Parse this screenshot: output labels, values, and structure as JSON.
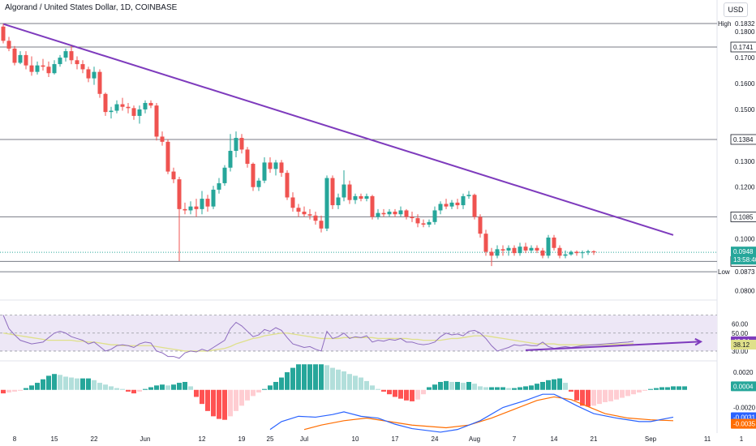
{
  "header": {
    "symbol_title": "Algorand / United States Dollar, 1D, COINBASE",
    "currency_button": "USD"
  },
  "colors": {
    "up": "#26a69a",
    "down": "#ef5350",
    "trendline": "#7e3bbd",
    "level": "#787b86",
    "rsi_line": "#8e6cbf",
    "rsi_ma": "#dfe08a",
    "rsi_band": "#ede7f6",
    "macd_line": "#2962ff",
    "signal_line": "#ff6d00",
    "hist_up_strong": "#26a69a",
    "hist_up_weak": "#b2dfdb",
    "hist_down_strong": "#ff5252",
    "hist_down_weak": "#ffcdd2",
    "price_tag": "#26a69a"
  },
  "chart_data": [
    {
      "type": "candlestick",
      "title": "Algorand / United States Dollar, 1D, COINBASE",
      "x_ticks": [
        "8",
        "15",
        "22",
        "Jun",
        "12",
        "19",
        "25",
        "Jul",
        "10",
        "17",
        "24",
        "Aug",
        "7",
        "14",
        "21",
        "Sep",
        "11",
        "1"
      ],
      "y_ticks": [
        "0.1800",
        "0.1700",
        "0.1600",
        "0.1500",
        "0.1300",
        "0.1200",
        "0.1000",
        "0.0800"
      ],
      "ylim": [
        0.077,
        0.186
      ],
      "candles_ohlc": [
        [
          0.182,
          0.183,
          0.1755,
          0.1765
        ],
        [
          0.1765,
          0.178,
          0.1725,
          0.1735
        ],
        [
          0.1735,
          0.1745,
          0.167,
          0.168
        ],
        [
          0.168,
          0.1725,
          0.1675,
          0.171
        ],
        [
          0.171,
          0.1725,
          0.1655,
          0.167
        ],
        [
          0.167,
          0.1705,
          0.163,
          0.1645
        ],
        [
          0.1645,
          0.1685,
          0.1635,
          0.167
        ],
        [
          0.167,
          0.1695,
          0.165,
          0.1665
        ],
        [
          0.1665,
          0.1685,
          0.1625,
          0.164
        ],
        [
          0.164,
          0.169,
          0.1635,
          0.1675
        ],
        [
          0.1675,
          0.171,
          0.1665,
          0.17
        ],
        [
          0.17,
          0.1735,
          0.1685,
          0.1725
        ],
        [
          0.1725,
          0.1745,
          0.1675,
          0.169
        ],
        [
          0.169,
          0.1705,
          0.1655,
          0.1675
        ],
        [
          0.1675,
          0.169,
          0.164,
          0.1655
        ],
        [
          0.1655,
          0.1665,
          0.1605,
          0.162
        ],
        [
          0.162,
          0.1665,
          0.1595,
          0.1645
        ],
        [
          0.1645,
          0.1655,
          0.1545,
          0.156
        ],
        [
          0.156,
          0.1565,
          0.1475,
          0.149
        ],
        [
          0.149,
          0.151,
          0.1465,
          0.1495
        ],
        [
          0.1495,
          0.1535,
          0.1485,
          0.152
        ],
        [
          0.152,
          0.1545,
          0.1495,
          0.151
        ],
        [
          0.151,
          0.1525,
          0.1485,
          0.1505
        ],
        [
          0.1505,
          0.1515,
          0.146,
          0.1475
        ],
        [
          0.1475,
          0.1515,
          0.1445,
          0.15
        ],
        [
          0.15,
          0.1535,
          0.1485,
          0.1525
        ],
        [
          0.1525,
          0.1535,
          0.1505,
          0.1515
        ],
        [
          0.1515,
          0.1525,
          0.138,
          0.1395
        ],
        [
          0.1395,
          0.1415,
          0.136,
          0.1375
        ],
        [
          0.1375,
          0.1385,
          0.125,
          0.126
        ],
        [
          0.126,
          0.1275,
          0.1215,
          0.123
        ],
        [
          0.123,
          0.124,
          0.0914,
          0.1115
        ],
        [
          0.1115,
          0.114,
          0.1095,
          0.111
        ],
        [
          0.111,
          0.1145,
          0.1095,
          0.1125
        ],
        [
          0.1125,
          0.1155,
          0.1085,
          0.1115
        ],
        [
          0.1115,
          0.1185,
          0.1095,
          0.1155
        ],
        [
          0.1155,
          0.117,
          0.1105,
          0.1125
        ],
        [
          0.1125,
          0.1205,
          0.1115,
          0.119
        ],
        [
          0.119,
          0.1235,
          0.1175,
          0.1215
        ],
        [
          0.1215,
          0.1285,
          0.1205,
          0.1275
        ],
        [
          0.1275,
          0.1405,
          0.126,
          0.134
        ],
        [
          0.134,
          0.1415,
          0.1315,
          0.139
        ],
        [
          0.139,
          0.1405,
          0.133,
          0.1345
        ],
        [
          0.1345,
          0.1355,
          0.1275,
          0.129
        ],
        [
          0.129,
          0.1295,
          0.1185,
          0.12
        ],
        [
          0.12,
          0.1235,
          0.1185,
          0.1225
        ],
        [
          0.1225,
          0.1315,
          0.1215,
          0.1295
        ],
        [
          0.1295,
          0.1315,
          0.1255,
          0.127
        ],
        [
          0.127,
          0.1305,
          0.1245,
          0.1295
        ],
        [
          0.1295,
          0.1305,
          0.124,
          0.1255
        ],
        [
          0.1255,
          0.1265,
          0.115,
          0.116
        ],
        [
          0.116,
          0.118,
          0.1105,
          0.112
        ],
        [
          0.112,
          0.1135,
          0.1085,
          0.1105
        ],
        [
          0.1105,
          0.1125,
          0.1085,
          0.1095
        ],
        [
          0.1095,
          0.1115,
          0.1075,
          0.109
        ],
        [
          0.109,
          0.1105,
          0.1055,
          0.107
        ],
        [
          0.107,
          0.109,
          0.1025,
          0.104
        ],
        [
          0.104,
          0.1245,
          0.103,
          0.1235
        ],
        [
          0.1235,
          0.1245,
          0.1115,
          0.113
        ],
        [
          0.113,
          0.1175,
          0.1115,
          0.116
        ],
        [
          0.116,
          0.1265,
          0.1145,
          0.121
        ],
        [
          0.121,
          0.1225,
          0.1135,
          0.115
        ],
        [
          0.115,
          0.1175,
          0.1135,
          0.1165
        ],
        [
          0.1165,
          0.1175,
          0.1145,
          0.1155
        ],
        [
          0.1155,
          0.1175,
          0.1145,
          0.1165
        ],
        [
          0.1165,
          0.117,
          0.1075,
          0.1085
        ],
        [
          0.1085,
          0.1115,
          0.1075,
          0.11
        ],
        [
          0.11,
          0.1115,
          0.1085,
          0.1095
        ],
        [
          0.1095,
          0.1115,
          0.1085,
          0.1105
        ],
        [
          0.1105,
          0.1115,
          0.1085,
          0.1095
        ],
        [
          0.1095,
          0.1125,
          0.1085,
          0.111
        ],
        [
          0.111,
          0.1115,
          0.1075,
          0.1085
        ],
        [
          0.1085,
          0.1105,
          0.1065,
          0.108
        ],
        [
          0.108,
          0.1095,
          0.1045,
          0.106
        ],
        [
          0.106,
          0.1075,
          0.1045,
          0.1055
        ],
        [
          0.1055,
          0.1075,
          0.1045,
          0.1065
        ],
        [
          0.1065,
          0.1125,
          0.1055,
          0.111
        ],
        [
          0.111,
          0.1145,
          0.1095,
          0.1135
        ],
        [
          0.1135,
          0.1155,
          0.1115,
          0.1125
        ],
        [
          0.1125,
          0.115,
          0.1115,
          0.114
        ],
        [
          0.114,
          0.1155,
          0.1115,
          0.113
        ],
        [
          0.113,
          0.1175,
          0.1115,
          0.1165
        ],
        [
          0.1165,
          0.1185,
          0.1155,
          0.117
        ],
        [
          0.117,
          0.1175,
          0.1075,
          0.1085
        ],
        [
          0.1085,
          0.1095,
          0.1005,
          0.102
        ],
        [
          0.102,
          0.1035,
          0.0935,
          0.095
        ],
        [
          0.095,
          0.0965,
          0.0895,
          0.0935
        ],
        [
          0.0935,
          0.0975,
          0.0925,
          0.096
        ],
        [
          0.096,
          0.0975,
          0.0935,
          0.0955
        ],
        [
          0.0955,
          0.0975,
          0.0935,
          0.0965
        ],
        [
          0.0965,
          0.0975,
          0.0935,
          0.0945
        ],
        [
          0.0945,
          0.0985,
          0.0935,
          0.097
        ],
        [
          0.097,
          0.0985,
          0.0945,
          0.0955
        ],
        [
          0.0955,
          0.0975,
          0.0945,
          0.0965
        ],
        [
          0.0965,
          0.0975,
          0.0945,
          0.0955
        ],
        [
          0.0955,
          0.0965,
          0.0925,
          0.0935
        ],
        [
          0.0935,
          0.1015,
          0.0925,
          0.1005
        ],
        [
          0.1005,
          0.1015,
          0.0955,
          0.0965
        ],
        [
          0.0965,
          0.0975,
          0.0925,
          0.0935
        ],
        [
          0.0935,
          0.0955,
          0.0925,
          0.094
        ],
        [
          0.094,
          0.0955,
          0.0935,
          0.095
        ],
        [
          0.095,
          0.0955,
          0.0935,
          0.0945
        ],
        [
          0.0945,
          0.0955,
          0.0925,
          0.0948
        ],
        [
          0.0948,
          0.0958,
          0.0938,
          0.0952
        ],
        [
          0.0952,
          0.0956,
          0.0938,
          0.0948
        ]
      ],
      "horizontal_levels": [
        {
          "value": 0.1832,
          "tag": "0.1832",
          "side_label": "High"
        },
        {
          "value": 0.1741,
          "tag": "0.1741"
        },
        {
          "value": 0.1384,
          "tag": "0.1384"
        },
        {
          "value": 0.1085,
          "tag": "0.1085"
        },
        {
          "value": 0.0913,
          "tag": "0.0913"
        },
        {
          "value": 0.0873,
          "tag": "0.0873",
          "side_label": "Low"
        }
      ],
      "current_price": {
        "value": 0.0948,
        "tag": "0.0948",
        "countdown": "13:58:40"
      },
      "trendline": {
        "from": [
          0,
          0.183
        ],
        "to": [
          118,
          0.1015
        ]
      }
    },
    {
      "type": "line",
      "name": "RSI",
      "y_ticks": [
        "60.00",
        "50.00",
        "30.00"
      ],
      "ylim": [
        20,
        85
      ],
      "band": [
        30,
        70
      ],
      "rsi": [
        70,
        55,
        48,
        42,
        40,
        38,
        39,
        40,
        45,
        50,
        52,
        50,
        46,
        44,
        42,
        38,
        40,
        35,
        30,
        32,
        36,
        37,
        36,
        34,
        38,
        40,
        39,
        30,
        28,
        24,
        24,
        22,
        28,
        30,
        29,
        32,
        30,
        34,
        38,
        42,
        55,
        62,
        58,
        52,
        46,
        48,
        54,
        52,
        56,
        53,
        45,
        38,
        36,
        34,
        35,
        32,
        30,
        52,
        44,
        46,
        50,
        44,
        46,
        45,
        47,
        40,
        42,
        41,
        43,
        42,
        44,
        40,
        40,
        38,
        37,
        38,
        40,
        46,
        50,
        48,
        49,
        47,
        52,
        53,
        50,
        44,
        36,
        30,
        32,
        34,
        37,
        36,
        37,
        36,
        36,
        40,
        35,
        33,
        34,
        35,
        34,
        35,
        36,
        36.5,
        37,
        37.5,
        38,
        38.5,
        39,
        39.5,
        40,
        40.84
      ],
      "rsi_ma": [
        50,
        49,
        48,
        47,
        46,
        45,
        44,
        43,
        42,
        42,
        42,
        42,
        42,
        41,
        41,
        40,
        40,
        39,
        38,
        37,
        37,
        36,
        36,
        36,
        36,
        36,
        36,
        35,
        34,
        33,
        32,
        31,
        30,
        30,
        30,
        30,
        30,
        31,
        32,
        33,
        35,
        38,
        40,
        42,
        44,
        45,
        47,
        48,
        49,
        50,
        50,
        49,
        48,
        47,
        46,
        45,
        44,
        44,
        44,
        44,
        45,
        45,
        45,
        45,
        45,
        45,
        44,
        44,
        44,
        44,
        44,
        44,
        43,
        43,
        42,
        42,
        42,
        42,
        43,
        44,
        44,
        45,
        46,
        47,
        47,
        47,
        46,
        45,
        44,
        43,
        42,
        41,
        40,
        39,
        38,
        38,
        38,
        38,
        37,
        37,
        37,
        37,
        37,
        37,
        37,
        37,
        37.2,
        37.4,
        37.6,
        37.8,
        38,
        38.12
      ],
      "value_tags": [
        "40.84",
        "38.12"
      ],
      "divergence_arrow": {
        "from": [
          92,
          31
        ],
        "to": [
          118,
          40.5
        ]
      }
    },
    {
      "type": "bar",
      "name": "MACD",
      "y_ticks": [
        "0.0020",
        "-0.0020",
        "-0.0040"
      ],
      "ylim": [
        -0.0049,
        0.0032
      ],
      "histogram": [
        -0.0003,
        -0.0004,
        -0.0003,
        -0.0002,
        -0.0001,
        0.0002,
        0.0005,
        0.0008,
        0.0012,
        0.0016,
        0.0018,
        0.0017,
        0.0015,
        0.0014,
        0.0013,
        0.0013,
        0.0013,
        0.0011,
        0.0008,
        0.0006,
        0.0004,
        0.0002,
        0.0001,
        -0.0002,
        -0.0004,
        -0.0002,
        0.0001,
        0.0003,
        0.0005,
        0.0006,
        0.0005,
        0.0006,
        0.0008,
        0.0009,
        0.0004,
        -0.0008,
        -0.0016,
        -0.0024,
        -0.003,
        -0.0033,
        -0.0034,
        -0.003,
        -0.0024,
        -0.0018,
        -0.0012,
        -0.0007,
        -0.0003,
        0.0001,
        0.0005,
        0.0009,
        0.0014,
        0.002,
        0.0025,
        0.0029,
        0.0029,
        0.0029,
        0.0029,
        0.0029,
        0.0028,
        0.0025,
        0.0023,
        0.0021,
        0.0018,
        0.0016,
        0.0014,
        0.001,
        0.0005,
        0.0001,
        -0.0002,
        -0.0005,
        -0.0008,
        -0.001,
        -0.0012,
        -0.0013,
        -0.0011,
        -0.0005,
        0.0003,
        0.0006,
        0.0009,
        0.001,
        0.0009,
        0.0009,
        0.0008,
        0.0009,
        0.0007,
        0.0004,
        0.0003,
        0.0003,
        0.0003,
        0.0003,
        0.0002,
        0.0002,
        0.0003,
        0.0004,
        0.0005,
        0.0007,
        0.0009,
        0.0011,
        0.0012,
        0.0013,
        0.0008,
        -0.0002,
        -0.0012,
        -0.0018,
        -0.0019,
        -0.0018,
        -0.0016,
        -0.0014,
        -0.0013,
        -0.0011,
        -0.0009,
        -0.0007,
        -0.0005,
        -0.0003,
        -0.0001,
        0.0001,
        0.0002,
        0.0003,
        0.0003,
        0.0004,
        0.0004,
        0.0004
      ],
      "hist_x_offset": -1,
      "macd_line": [
        [
          47,
          -0.0045
        ],
        [
          49,
          -0.0036
        ],
        [
          52,
          -0.003
        ],
        [
          55,
          -0.0031
        ],
        [
          58,
          -0.0028
        ],
        [
          60,
          -0.0025
        ],
        [
          63,
          -0.003
        ],
        [
          66,
          -0.0032
        ],
        [
          69,
          -0.0039
        ],
        [
          72,
          -0.0044
        ],
        [
          77,
          -0.0048
        ],
        [
          80,
          -0.0045
        ],
        [
          84,
          -0.0035
        ],
        [
          88,
          -0.002
        ],
        [
          92,
          -0.0012
        ],
        [
          95,
          -0.0005
        ],
        [
          97,
          -0.0005
        ],
        [
          98,
          -0.0008
        ],
        [
          101,
          -0.0018
        ],
        [
          104,
          -0.0027
        ],
        [
          108,
          -0.0032
        ],
        [
          112,
          -0.0036
        ],
        [
          114,
          -0.0036
        ],
        [
          118,
          -0.0031
        ]
      ],
      "signal_line": [
        [
          53,
          -0.0045
        ],
        [
          56,
          -0.004
        ],
        [
          60,
          -0.0035
        ],
        [
          64,
          -0.0032
        ],
        [
          68,
          -0.0036
        ],
        [
          72,
          -0.004
        ],
        [
          78,
          -0.0043
        ],
        [
          82,
          -0.004
        ],
        [
          86,
          -0.0032
        ],
        [
          90,
          -0.0022
        ],
        [
          94,
          -0.0012
        ],
        [
          97,
          -0.0008
        ],
        [
          100,
          -0.0011
        ],
        [
          103,
          -0.0019
        ],
        [
          106,
          -0.0027
        ],
        [
          110,
          -0.0032
        ],
        [
          114,
          -0.0034
        ],
        [
          118,
          -0.0035
        ]
      ],
      "value_tags": [
        "0.0004",
        "-0.0031",
        "-0.0035"
      ]
    }
  ]
}
